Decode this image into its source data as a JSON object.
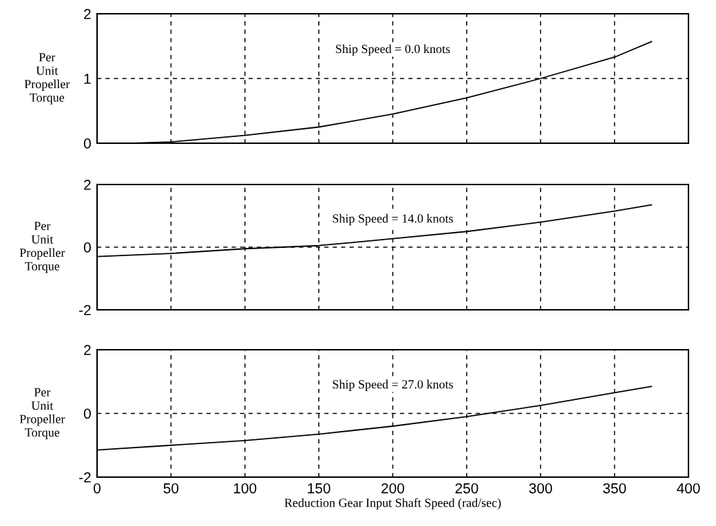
{
  "chart_data": [
    {
      "type": "line",
      "ylabel": "Per\nUnit\nPropeller\nTorque",
      "annotations": [
        "Ship Speed = 0.0 knots"
      ],
      "x": [
        25,
        50,
        100,
        150,
        200,
        250,
        300,
        350,
        375
      ],
      "series": [
        {
          "color": "#000000",
          "values": [
            0,
            0.02,
            0.12,
            0.25,
            0.45,
            0.7,
            1.0,
            1.33,
            1.57
          ]
        }
      ],
      "xlim": [
        0,
        400
      ],
      "xticks": [
        0,
        50,
        100,
        150,
        200,
        250,
        300,
        350,
        400
      ],
      "ylim": [
        0,
        2
      ],
      "yticks": [
        0,
        1,
        2
      ],
      "grid": true,
      "tick_labels": "y"
    },
    {
      "type": "line",
      "ylabel": "Per\nUnit\nPropeller\nTorque",
      "annotations": [
        "Ship Speed = 14.0 knots"
      ],
      "x": [
        0,
        50,
        100,
        150,
        200,
        250,
        300,
        350,
        375
      ],
      "series": [
        {
          "color": "#000000",
          "values": [
            -0.3,
            -0.2,
            -0.05,
            0.05,
            0.27,
            0.5,
            0.8,
            1.15,
            1.35
          ]
        }
      ],
      "xlim": [
        0,
        400
      ],
      "xticks": [
        0,
        50,
        100,
        150,
        200,
        250,
        300,
        350,
        400
      ],
      "ylim": [
        -2,
        2
      ],
      "yticks": [
        -2,
        0,
        2
      ],
      "grid": true,
      "tick_labels": "y"
    },
    {
      "type": "line",
      "ylabel": "Per\nUnit\nPropeller\nTorque",
      "xlabel": "Reduction Gear Input Shaft Speed (rad/sec)",
      "annotations": [
        "Ship Speed = 27.0 knots"
      ],
      "x": [
        0,
        50,
        100,
        150,
        200,
        250,
        300,
        350,
        375
      ],
      "series": [
        {
          "color": "#000000",
          "values": [
            -1.15,
            -1.0,
            -0.85,
            -0.65,
            -0.4,
            -0.1,
            0.25,
            0.65,
            0.85
          ]
        }
      ],
      "xlim": [
        0,
        400
      ],
      "xticks": [
        0,
        50,
        100,
        150,
        200,
        250,
        300,
        350,
        400
      ],
      "ylim": [
        -2,
        2
      ],
      "yticks": [
        -2,
        0,
        2
      ],
      "grid": true
    }
  ]
}
